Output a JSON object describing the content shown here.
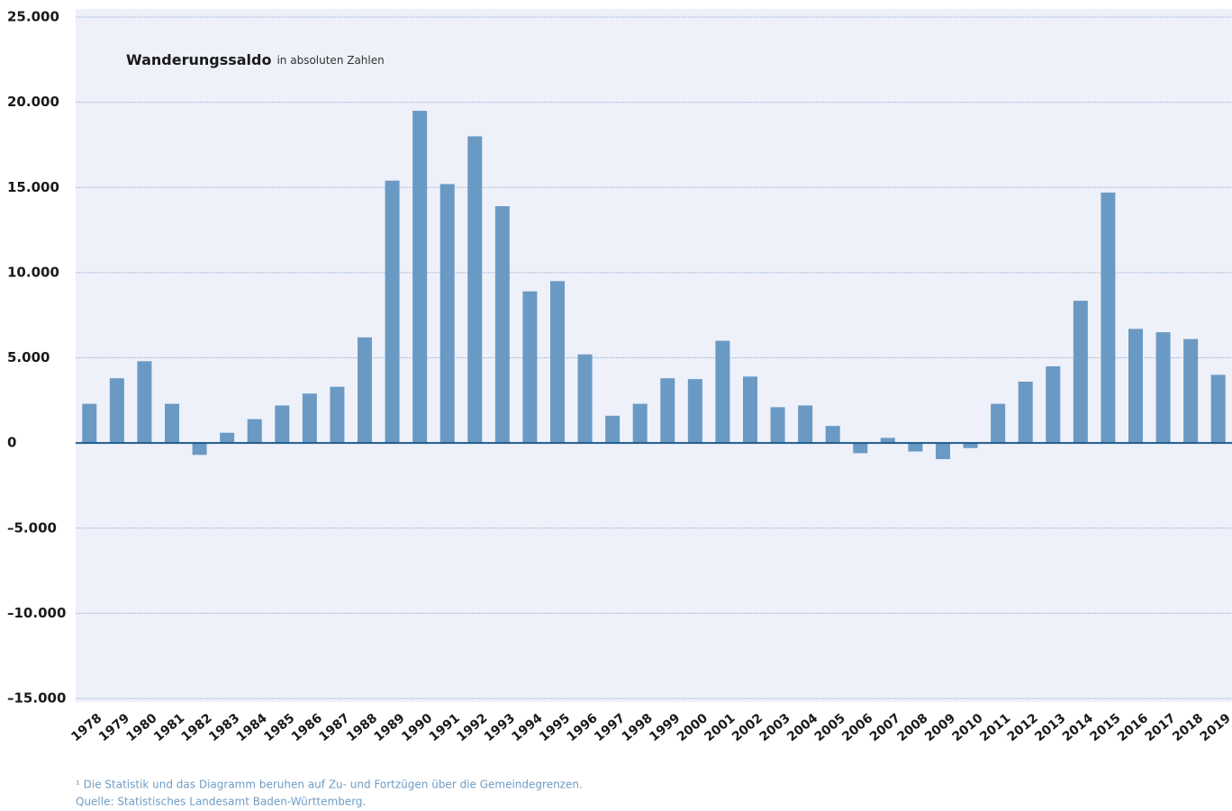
{
  "chart_data": {
    "type": "bar",
    "title": "Wanderungssaldo",
    "subtitle": "in absoluten Zahlen",
    "footnote": "¹ Die Statistik und das Diagramm beruhen auf Zu- und Fortzügen über die Gemeindegrenzen.",
    "source": "Quelle: Statistisches Landesamt Baden-Württemberg.",
    "categories": [
      "1978",
      "1979",
      "1980",
      "1981",
      "1982",
      "1983",
      "1984",
      "1985",
      "1986",
      "1987",
      "1988",
      "1989",
      "1990",
      "1991",
      "1992",
      "1993",
      "1994",
      "1995",
      "1996",
      "1997",
      "1998",
      "1999",
      "2000",
      "2001",
      "2002",
      "2003",
      "2004",
      "2005",
      "2006",
      "2007",
      "2008",
      "2009",
      "2010",
      "2011",
      "2012",
      "2013",
      "2014",
      "2015",
      "2016",
      "2017",
      "2018",
      "2019"
    ],
    "values": [
      2300,
      3800,
      4800,
      2300,
      -700,
      600,
      1400,
      2200,
      2900,
      3300,
      6200,
      15400,
      19500,
      15200,
      18000,
      13900,
      8900,
      9500,
      5200,
      1600,
      2300,
      3800,
      3750,
      6000,
      3900,
      2100,
      2200,
      1000,
      -600,
      300,
      -500,
      -950,
      -300,
      2300,
      3600,
      4500,
      8350,
      14700,
      6700,
      6500,
      6100,
      4000
    ],
    "color": "#6a9ac4",
    "ylim": [
      -15000,
      25000
    ],
    "yticks": [
      {
        "value": -15000,
        "label": "–15.000"
      },
      {
        "value": -10000,
        "label": "–10.000"
      },
      {
        "value": -5000,
        "label": "–5.000"
      },
      0,
      {
        "value": 5000,
        "label": "5.000"
      },
      {
        "value": 10000,
        "label": "10.000"
      },
      {
        "value": 15000,
        "label": "15.000"
      },
      {
        "value": 20000,
        "label": "20.000"
      },
      {
        "value": 25000,
        "label": "25.000"
      }
    ],
    "grid": true
  }
}
